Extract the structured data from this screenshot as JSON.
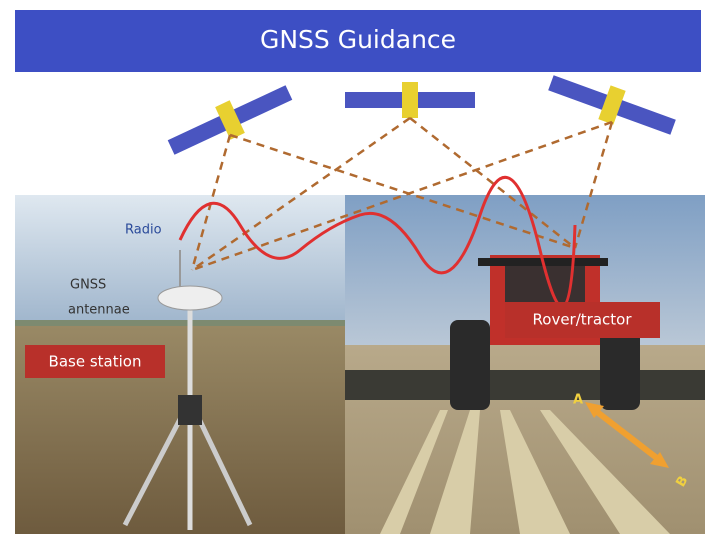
{
  "header": {
    "title": "GNSS Guidance"
  },
  "labels": {
    "radio": "Radio",
    "antenna_line1": "GNSS",
    "antenna_line2": "antennae",
    "base_station": "Base station",
    "rover": "Rover/tractor",
    "point_a": "A",
    "point_b": "B"
  }
}
